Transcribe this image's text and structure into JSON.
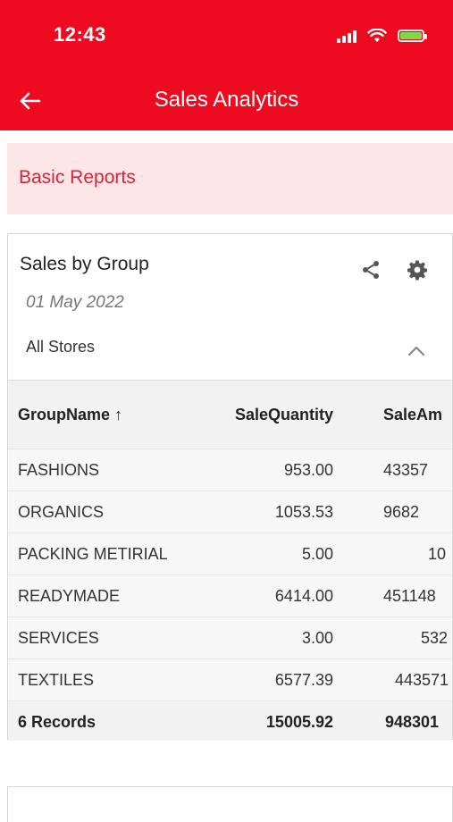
{
  "status_bar": {
    "time": "12:43"
  },
  "header": {
    "title": "Sales Analytics"
  },
  "section": {
    "label": "Basic Reports"
  },
  "card": {
    "title": "Sales by Group",
    "date": "01 May 2022",
    "store": "All Stores"
  },
  "table": {
    "columns": [
      "GroupName ↑",
      "SaleQuantity",
      "SaleAm"
    ],
    "rows": [
      [
        "FASHIONS",
        "953.00",
        "43357"
      ],
      [
        "ORGANICS",
        "1053.53",
        "9682"
      ],
      [
        "PACKING METIRIAL",
        "5.00",
        "10"
      ],
      [
        "READYMADE",
        "6414.00",
        "451148"
      ],
      [
        "SERVICES",
        "3.00",
        "532"
      ],
      [
        "TEXTILES",
        "6577.39",
        "443571"
      ]
    ],
    "footer": [
      "6 Records",
      "15005.92",
      "948301"
    ]
  },
  "colors": {
    "header_red": "#ee0b1f",
    "banner_bg": "#fde6e8",
    "banner_text": "#d52638"
  },
  "icons": [
    "back-arrow-icon",
    "share-icon",
    "gear-icon",
    "chevron-up-icon",
    "signal-icon",
    "wifi-icon",
    "battery-icon"
  ]
}
